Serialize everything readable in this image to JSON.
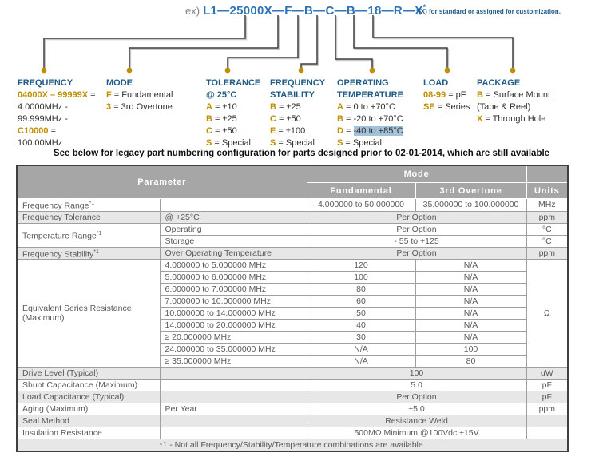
{
  "colors": {
    "navy": "#1f5b86",
    "blue": "#2e74b5",
    "gold": "#bf8f00",
    "highlight": "#a3c2d9",
    "table_header_bg": "#a6a6a6",
    "row_shade": "#e8e7e7"
  },
  "example": {
    "prefix": "ex)",
    "part_number": "L1—25000X—F—B—C—B—18—R—X",
    "star": "*",
    "note": "*(X) for standard or assigned for customization."
  },
  "legacy_note": "See below for legacy part numbering configuration for parts designed prior to 02-01-2014, which are still available",
  "categories": [
    {
      "name": "frequency",
      "heading": [
        "FREQUENCY"
      ],
      "lines": [
        [
          {
            "t": "04000X – 99999X",
            "c": "gold"
          },
          {
            "t": " ="
          }
        ],
        [
          {
            "t": "4.0000MHz -"
          }
        ],
        [
          {
            "t": "99.999MHz -"
          }
        ],
        [
          {
            "t": "C10000",
            "c": "gold"
          },
          {
            "t": " ="
          }
        ],
        [
          {
            "t": "100.00MHz"
          }
        ]
      ]
    },
    {
      "name": "mode",
      "heading": [
        "MODE"
      ],
      "lines": [
        [
          {
            "t": "F",
            "c": "gold"
          },
          {
            "t": " = Fundamental"
          }
        ],
        [
          {
            "t": "3",
            "c": "gold"
          },
          {
            "t": " = 3rd Overtone"
          }
        ]
      ]
    },
    {
      "name": "tolerance",
      "heading": [
        "TOLERANCE",
        "@ 25°C"
      ],
      "lines": [
        [
          {
            "t": "A",
            "c": "gold"
          },
          {
            "t": " = ±10"
          }
        ],
        [
          {
            "t": "B",
            "c": "gold"
          },
          {
            "t": " = ±25"
          }
        ],
        [
          {
            "t": "C",
            "c": "gold"
          },
          {
            "t": " = ±50"
          }
        ],
        [
          {
            "t": "S",
            "c": "gold"
          },
          {
            "t": " = Special"
          }
        ]
      ]
    },
    {
      "name": "frequency-stability",
      "heading": [
        "FREQUENCY",
        "STABILITY"
      ],
      "lines": [
        [
          {
            "t": "B",
            "c": "gold"
          },
          {
            "t": " = ±25"
          }
        ],
        [
          {
            "t": "C",
            "c": "gold"
          },
          {
            "t": " = ±50"
          }
        ],
        [
          {
            "t": "E",
            "c": "gold"
          },
          {
            "t": " = ±100"
          }
        ],
        [
          {
            "t": "S",
            "c": "gold"
          },
          {
            "t": " = Special"
          }
        ]
      ]
    },
    {
      "name": "operating-temperature",
      "heading": [
        "OPERATING",
        "TEMPERATURE"
      ],
      "lines": [
        [
          {
            "t": "A",
            "c": "gold"
          },
          {
            "t": " = 0 to +70°C"
          }
        ],
        [
          {
            "t": "B",
            "c": "gold"
          },
          {
            "t": " = -20 to +70°C"
          }
        ],
        [
          {
            "t": "D",
            "c": "gold"
          },
          {
            "t": " = "
          },
          {
            "t": "-40 to +85°C",
            "hl": true
          }
        ],
        [
          {
            "t": "S",
            "c": "gold"
          },
          {
            "t": " = Special"
          }
        ]
      ]
    },
    {
      "name": "load",
      "heading": [
        "LOAD"
      ],
      "lines": [
        [
          {
            "t": "08-99",
            "c": "gold"
          },
          {
            "t": " = pF"
          }
        ],
        [
          {
            "t": "SE",
            "c": "gold"
          },
          {
            "t": " = Series"
          }
        ]
      ]
    },
    {
      "name": "package",
      "heading": [
        "PACKAGE"
      ],
      "lines": [
        [
          {
            "t": "B",
            "c": "gold"
          },
          {
            "t": " = Surface Mount"
          }
        ],
        [
          {
            "t": "(Tape & Reel)"
          }
        ],
        [
          {
            "t": "X",
            "c": "gold"
          },
          {
            "t": " = Through Hole"
          }
        ]
      ]
    }
  ],
  "table": {
    "header": {
      "parameter": "Parameter",
      "mode": "Mode",
      "fundamental": "Fundamental",
      "overtone": "3rd Overtone",
      "units": "Units"
    },
    "rows": [
      {
        "g": 0,
        "cells": [
          {
            "t": "Frequency Range",
            "sup": "*1"
          },
          {
            "t": ""
          },
          {
            "t": "4.000000 to 50.000000",
            "a": "c"
          },
          {
            "t": "35.000000 to 100.000000",
            "a": "c"
          },
          {
            "t": "MHz",
            "a": "c"
          }
        ]
      },
      {
        "g": 1,
        "cells": [
          {
            "t": "Frequency Tolerance"
          },
          {
            "t": "@ +25°C"
          },
          {
            "t": "Per Option",
            "cs": 2,
            "a": "c"
          },
          {
            "t": "ppm",
            "a": "c"
          }
        ]
      },
      {
        "g": 0,
        "cells": [
          {
            "t": "Temperature Range",
            "sup": "*1",
            "rs": 2
          },
          {
            "t": "Operating"
          },
          {
            "t": "Per Option",
            "cs": 2,
            "a": "c"
          },
          {
            "t": "°C",
            "a": "c"
          }
        ]
      },
      {
        "g": 0,
        "cells": [
          {
            "t": "Storage"
          },
          {
            "t": "- 55 to +125",
            "cs": 2,
            "a": "c"
          },
          {
            "t": "°C",
            "a": "c"
          }
        ]
      },
      {
        "g": 1,
        "cells": [
          {
            "t": "Frequency Stability",
            "sup": "*1"
          },
          {
            "t": "Over Operating Temperature"
          },
          {
            "t": "Per Option",
            "cs": 2,
            "a": "c"
          },
          {
            "t": "ppm",
            "a": "c"
          }
        ]
      },
      {
        "g": 0,
        "cells": [
          {
            "t": "Equivalent Series Resistance (Maximum)",
            "rs": 9
          },
          {
            "t": "4.000000 to 5.000000 MHz"
          },
          {
            "t": "120",
            "a": "c"
          },
          {
            "t": "N/A",
            "a": "c"
          },
          {
            "t": "Ω",
            "rs": 9,
            "a": "c"
          }
        ]
      },
      {
        "g": 0,
        "cells": [
          {
            "t": "5.000000 to 6.000000 MHz"
          },
          {
            "t": "100",
            "a": "c"
          },
          {
            "t": "N/A",
            "a": "c"
          }
        ]
      },
      {
        "g": 0,
        "cells": [
          {
            "t": "6.000000 to 7.000000 MHz"
          },
          {
            "t": "80",
            "a": "c"
          },
          {
            "t": "N/A",
            "a": "c"
          }
        ]
      },
      {
        "g": 0,
        "cells": [
          {
            "t": "7.000000 to 10.000000 MHz"
          },
          {
            "t": "60",
            "a": "c"
          },
          {
            "t": "N/A",
            "a": "c"
          }
        ]
      },
      {
        "g": 0,
        "cells": [
          {
            "t": "10.000000 to 14.000000 MHz"
          },
          {
            "t": "50",
            "a": "c"
          },
          {
            "t": "N/A",
            "a": "c"
          }
        ]
      },
      {
        "g": 0,
        "cells": [
          {
            "t": "14.000000 to 20.000000 MHz"
          },
          {
            "t": "40",
            "a": "c"
          },
          {
            "t": "N/A",
            "a": "c"
          }
        ]
      },
      {
        "g": 0,
        "cells": [
          {
            "t": "≥ 20.000000 MHz"
          },
          {
            "t": "30",
            "a": "c"
          },
          {
            "t": "N/A",
            "a": "c"
          }
        ]
      },
      {
        "g": 0,
        "cells": [
          {
            "t": "24.000000 to 35.000000 MHz"
          },
          {
            "t": "N/A",
            "a": "c"
          },
          {
            "t": "100",
            "a": "c"
          }
        ]
      },
      {
        "g": 0,
        "cells": [
          {
            "t": "≥ 35.000000 MHz"
          },
          {
            "t": "N/A",
            "a": "c"
          },
          {
            "t": "80",
            "a": "c"
          }
        ]
      },
      {
        "g": 1,
        "cells": [
          {
            "t": "Drive Level (Typical)"
          },
          {
            "t": ""
          },
          {
            "t": "100",
            "cs": 2,
            "a": "c"
          },
          {
            "t": "uW",
            "a": "c"
          }
        ]
      },
      {
        "g": 0,
        "cells": [
          {
            "t": "Shunt Capacitance (Maximum)"
          },
          {
            "t": ""
          },
          {
            "t": "5.0",
            "cs": 2,
            "a": "c"
          },
          {
            "t": "pF",
            "a": "c"
          }
        ]
      },
      {
        "g": 1,
        "cells": [
          {
            "t": "Load Capacitance (Typical)"
          },
          {
            "t": ""
          },
          {
            "t": "Per Option",
            "cs": 2,
            "a": "c"
          },
          {
            "t": "pF",
            "a": "c"
          }
        ]
      },
      {
        "g": 0,
        "cells": [
          {
            "t": "Aging (Maximum)"
          },
          {
            "t": "Per Year"
          },
          {
            "t": "±5.0",
            "cs": 2,
            "a": "c"
          },
          {
            "t": "ppm",
            "a": "c"
          }
        ]
      },
      {
        "g": 1,
        "cells": [
          {
            "t": "Seal Method"
          },
          {
            "t": ""
          },
          {
            "t": "Resistance Weld",
            "cs": 2,
            "a": "c"
          },
          {
            "t": ""
          }
        ]
      },
      {
        "g": 0,
        "cells": [
          {
            "t": "Insulation Resistance"
          },
          {
            "t": ""
          },
          {
            "t": "500MΩ Minimum @100Vdc ±15V",
            "cs": 2,
            "a": "c"
          },
          {
            "t": ""
          }
        ]
      },
      {
        "g": 1,
        "cells": [
          {
            "t": "*1 - Not all Frequency/Stability/Temperature combinations are available.",
            "cs": 5,
            "a": "c"
          }
        ]
      }
    ]
  }
}
